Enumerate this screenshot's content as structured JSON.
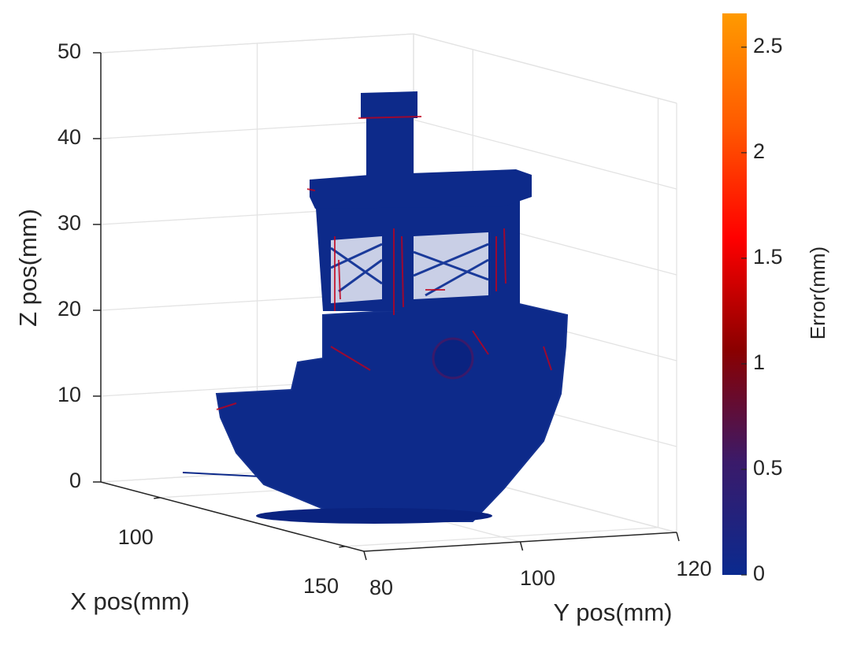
{
  "chart_data": {
    "type": "3d-line",
    "xlabel": "X pos(mm)",
    "ylabel": "Y pos(mm)",
    "zlabel": "Z pos(mm)",
    "xlim": [
      84,
      155
    ],
    "xticks": [
      100,
      150
    ],
    "ylim": [
      80,
      120
    ],
    "yticks": [
      80,
      100,
      120
    ],
    "zlim": [
      0,
      50
    ],
    "zticks": [
      0,
      10,
      20,
      30,
      40,
      50
    ],
    "grid": true,
    "colorbar": {
      "label": "Error(mm)",
      "clim": [
        0,
        2.66
      ],
      "ticks": [
        0,
        0.5,
        1,
        1.5,
        2,
        2.5
      ],
      "colors": [
        "#0a2a8f",
        "#3a1a6a",
        "#8a0000",
        "#ff0000",
        "#ff5a00",
        "#ff9a00"
      ]
    }
  }
}
